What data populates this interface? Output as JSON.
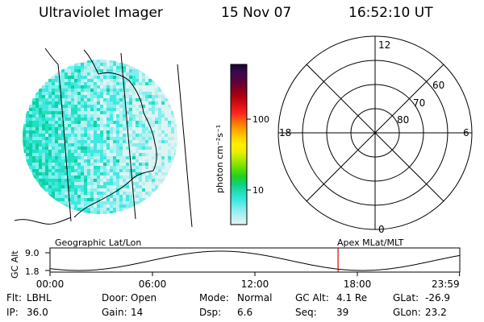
{
  "header": {
    "instrument": "Ultraviolet Imager",
    "date": "15 Nov 07",
    "time": "16:52:10 UT"
  },
  "colorbar": {
    "unit_label": "photon cm⁻²s⁻¹",
    "ticks": [
      "100",
      "10"
    ],
    "colors": [
      "#1a0030",
      "#3a0a50",
      "#5a0040",
      "#800020",
      "#b00010",
      "#d81010",
      "#ff2020",
      "#ff6010",
      "#ff9c00",
      "#ffcc00",
      "#ffee00",
      "#e8f000",
      "#a8e800",
      "#60e000",
      "#20d020",
      "#10d080",
      "#20e0c0",
      "#40e8e0",
      "#80eeee",
      "#b8f0f0",
      "#e0f4f4"
    ]
  },
  "polar": {
    "clock_labels": [
      "12",
      "18",
      "6",
      "0"
    ],
    "lat_labels": [
      "60",
      "70",
      "80"
    ]
  },
  "track": {
    "left_label": "Geographic Lat/Lon",
    "right_label": "Apex MLat/MLT",
    "axis_label": "GC Alt",
    "y_ticks": [
      "9.0",
      "1.8"
    ],
    "x_ticks": [
      "00:00",
      "06:00",
      "12:00",
      "18:00",
      "23:59"
    ],
    "current_time_hours": 16.87,
    "marker_color": "#dd0000"
  },
  "info": {
    "row1": [
      {
        "label": "Flt:",
        "value": "LBHL"
      },
      {
        "label": "Door:",
        "value": "Open"
      },
      {
        "label": "Mode:",
        "value": "Normal"
      },
      {
        "label": "GC Alt:",
        "value": "4.1 Re"
      },
      {
        "label": "GLat:",
        "value": "-26.9"
      }
    ],
    "row2": [
      {
        "label": "IP:",
        "value": "36.0"
      },
      {
        "label": "Gain:",
        "value": "14"
      },
      {
        "label": "Dsp:",
        "value": "6.6"
      },
      {
        "label": "Seq:",
        "value": "39"
      },
      {
        "label": "GLon:",
        "value": "23.2"
      }
    ]
  }
}
